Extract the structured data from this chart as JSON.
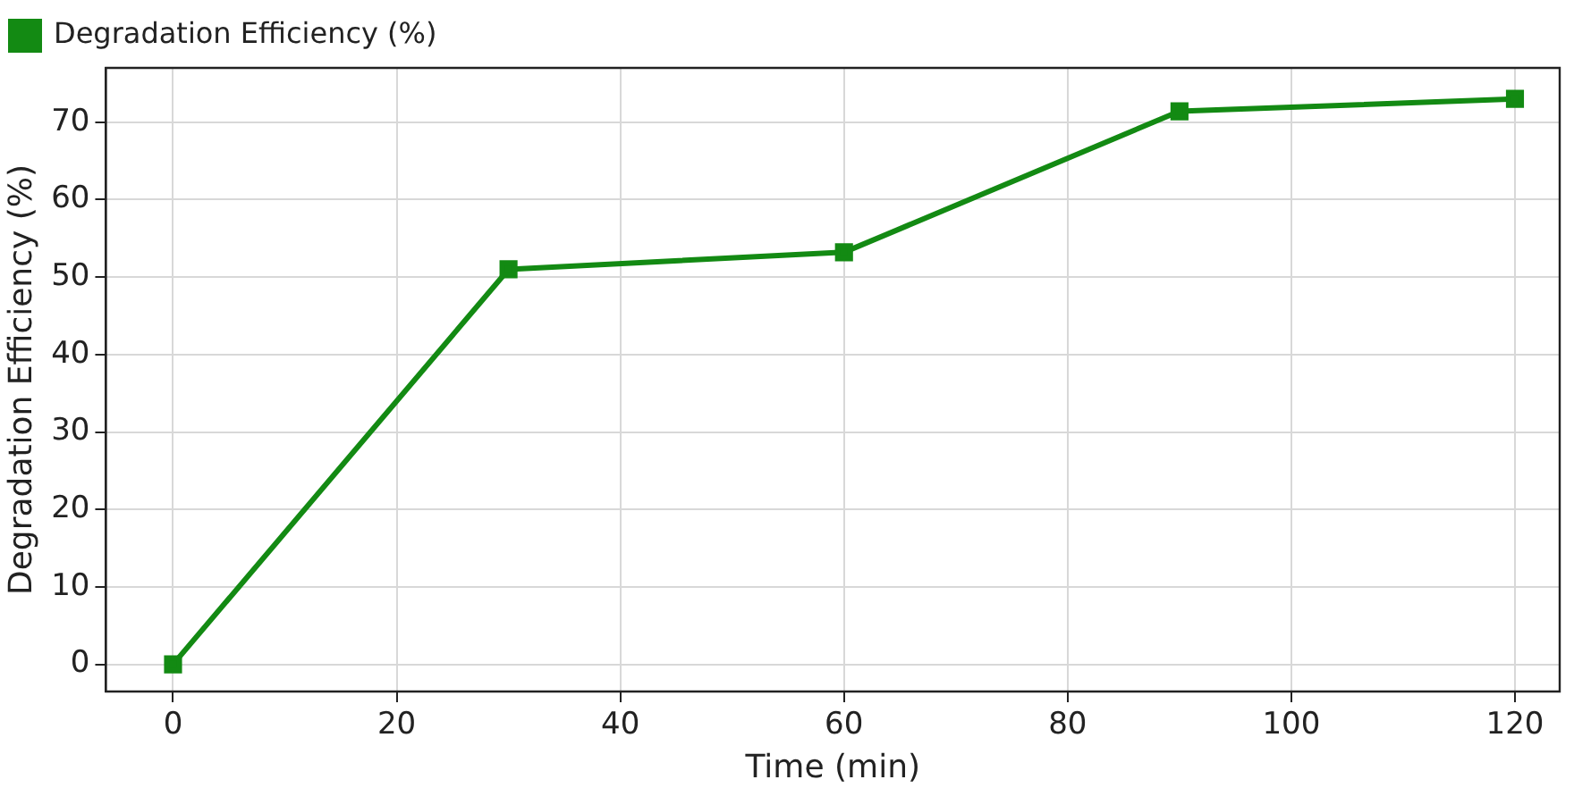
{
  "chart_data": {
    "type": "line",
    "xlabel": "Time (min)",
    "ylabel": "Degradation Efficiency (%)",
    "x": [
      0,
      30,
      60,
      90,
      120
    ],
    "series": [
      {
        "name": "Degradation Efficiency (%)",
        "color": "#138a13",
        "values": [
          0,
          51,
          53.2,
          71.4,
          73
        ]
      }
    ],
    "xlim": [
      -6,
      124
    ],
    "ylim": [
      -3.5,
      77
    ],
    "xticks": [
      0,
      20,
      40,
      60,
      80,
      100,
      120
    ],
    "yticks": [
      0,
      10,
      20,
      30,
      40,
      50,
      60,
      70
    ],
    "grid": true,
    "legend": "top left",
    "marker": "square",
    "line_style": "solid"
  }
}
